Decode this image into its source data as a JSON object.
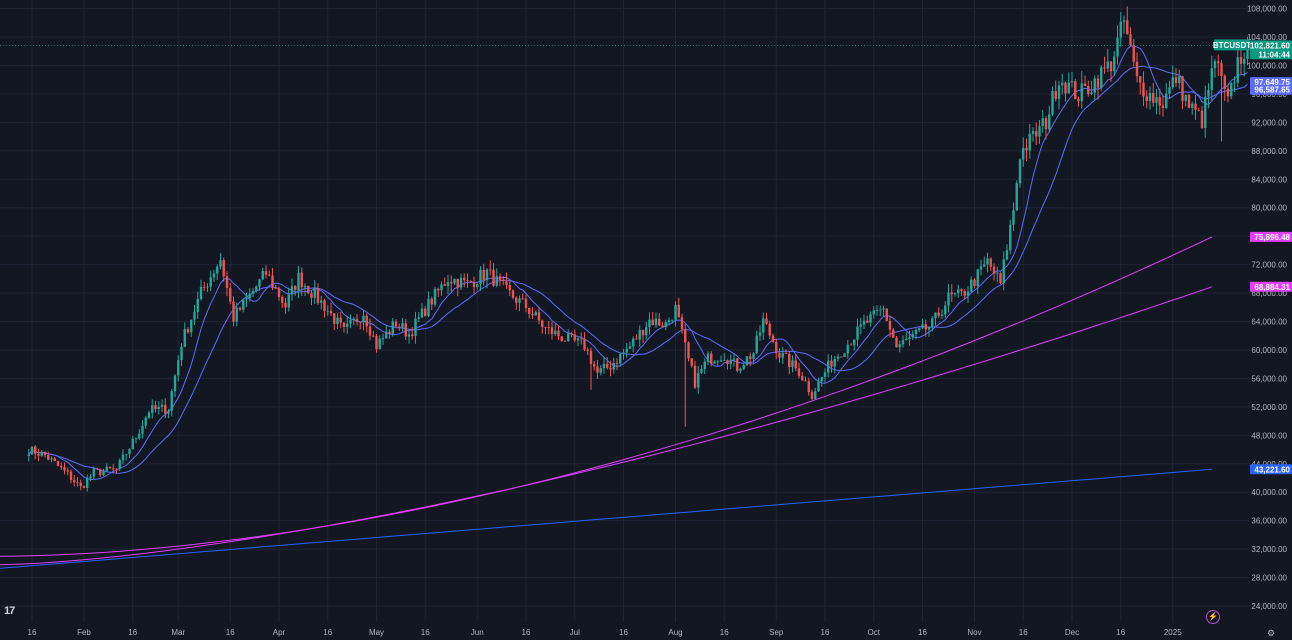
{
  "chart_data": {
    "type": "candlestick",
    "symbol": "BTCUSDT",
    "last_price": "102,821.60",
    "countdown": "11:04:44",
    "ylim": [
      22000,
      109500
    ],
    "y_ticks": [
      24000,
      28000,
      32000,
      36000,
      40000,
      44000,
      48000,
      52000,
      56000,
      60000,
      64000,
      68000,
      72000,
      76000,
      80000,
      84000,
      88000,
      92000,
      96000,
      100000,
      104000,
      108000
    ],
    "y_tick_labels": [
      "24,000.00",
      "28,000.00",
      "32,000.00",
      "36,000.00",
      "40,000.00",
      "44,000.00",
      "48,000.00",
      "52,000.00",
      "56,000.00",
      "60,000.00",
      "64,000.00",
      "68,000.00",
      "72,000.00",
      "76,000.00",
      "80,000.00",
      "84,000.00",
      "88,000.00",
      "92,000.00",
      "96,000.00",
      "100,000.00",
      "104,000.00",
      "108,000.00"
    ],
    "x_ticks": [
      "16",
      "Feb",
      "16",
      "Mar",
      "16",
      "Apr",
      "16",
      "May",
      "16",
      "Jun",
      "16",
      "Jul",
      "16",
      "Aug",
      "16",
      "Sep",
      "16",
      "Oct",
      "16",
      "Nov",
      "16",
      "Dec",
      "16",
      "2025",
      "16"
    ],
    "x_tick_days": [
      -16,
      0,
      15,
      29,
      45,
      60,
      75,
      90,
      105,
      121,
      136,
      151,
      166,
      182,
      197,
      213,
      228,
      243,
      258,
      274,
      289,
      304,
      319,
      335,
      350
    ],
    "anchors": [
      [
        -17,
        46000
      ],
      [
        -12,
        45200
      ],
      [
        -5,
        42500
      ],
      [
        -1,
        40600
      ],
      [
        3,
        42800
      ],
      [
        10,
        43200
      ],
      [
        16,
        47800
      ],
      [
        20,
        51500
      ],
      [
        26,
        51800
      ],
      [
        30,
        61000
      ],
      [
        36,
        68000
      ],
      [
        42,
        72800
      ],
      [
        46,
        64500
      ],
      [
        50,
        67000
      ],
      [
        56,
        70800
      ],
      [
        62,
        66200
      ],
      [
        66,
        70200
      ],
      [
        74,
        66200
      ],
      [
        80,
        62500
      ],
      [
        86,
        65300
      ],
      [
        90,
        60600
      ],
      [
        96,
        63800
      ],
      [
        100,
        62200
      ],
      [
        106,
        66400
      ],
      [
        112,
        70100
      ],
      [
        118,
        69300
      ],
      [
        124,
        70900
      ],
      [
        130,
        68200
      ],
      [
        136,
        66100
      ],
      [
        142,
        63000
      ],
      [
        148,
        61600
      ],
      [
        154,
        60600
      ],
      [
        158,
        56700
      ],
      [
        162,
        57800
      ],
      [
        168,
        60500
      ],
      [
        174,
        64200
      ],
      [
        179,
        63600
      ],
      [
        182,
        65800
      ],
      [
        186,
        58500
      ],
      [
        188,
        55500
      ],
      [
        192,
        58800
      ],
      [
        197,
        59300
      ],
      [
        201,
        57600
      ],
      [
        206,
        59600
      ],
      [
        209,
        64100
      ],
      [
        214,
        59400
      ],
      [
        220,
        57000
      ],
      [
        224,
        53800
      ],
      [
        230,
        58400
      ],
      [
        236,
        61400
      ],
      [
        240,
        63600
      ],
      [
        246,
        65700
      ],
      [
        250,
        60400
      ],
      [
        256,
        62100
      ],
      [
        261,
        63600
      ],
      [
        266,
        67300
      ],
      [
        270,
        67700
      ],
      [
        274,
        69800
      ],
      [
        278,
        72400
      ],
      [
        282,
        69300
      ],
      [
        286,
        79800
      ],
      [
        288,
        87600
      ],
      [
        292,
        89900
      ],
      [
        296,
        92100
      ],
      [
        300,
        98300
      ],
      [
        306,
        95800
      ],
      [
        310,
        97300
      ],
      [
        316,
        100300
      ],
      [
        320,
        106200
      ],
      [
        324,
        97800
      ],
      [
        328,
        95800
      ],
      [
        332,
        94800
      ],
      [
        336,
        98300
      ],
      [
        340,
        94300
      ],
      [
        344,
        92300
      ],
      [
        348,
        100800
      ],
      [
        352,
        94500
      ],
      [
        355,
        100500
      ],
      [
        358,
        102821
      ]
    ],
    "wick_extremes": [
      {
        "day": 156,
        "low": 54400
      },
      {
        "day": 185,
        "low": 49200
      },
      {
        "day": 321,
        "high": 108300
      },
      {
        "day": 350,
        "low": 89300
      }
    ],
    "moving_averages": [
      {
        "label": "97,649.75",
        "color": "#5b6cff",
        "value": 97649.75,
        "lag": 20
      },
      {
        "label": "96,587.65",
        "color": "#5b6cff",
        "value": 96587.65
      },
      {
        "label": "75,896.48",
        "color": "#e040fb",
        "value": 75896.48,
        "start": 31000,
        "mid_start": 31000,
        "shape": 1.8
      },
      {
        "label": "68,884.31",
        "color": "#e040fb",
        "value": 68884.31,
        "start": 29800,
        "shape": 1.5
      },
      {
        "label": "43,221.60",
        "color": "#2962ff",
        "value": 43221.6,
        "start": 29300,
        "shape": 1.0
      }
    ],
    "colors": {
      "background": "#131722",
      "up": "#26a69a",
      "down": "#ef5350",
      "grid": "#1f2433",
      "text": "#b2b5be",
      "price_label": "#089981"
    }
  },
  "logo_text": "17",
  "settings_icon": "gear-icon",
  "alert_icon": "lightning-icon"
}
